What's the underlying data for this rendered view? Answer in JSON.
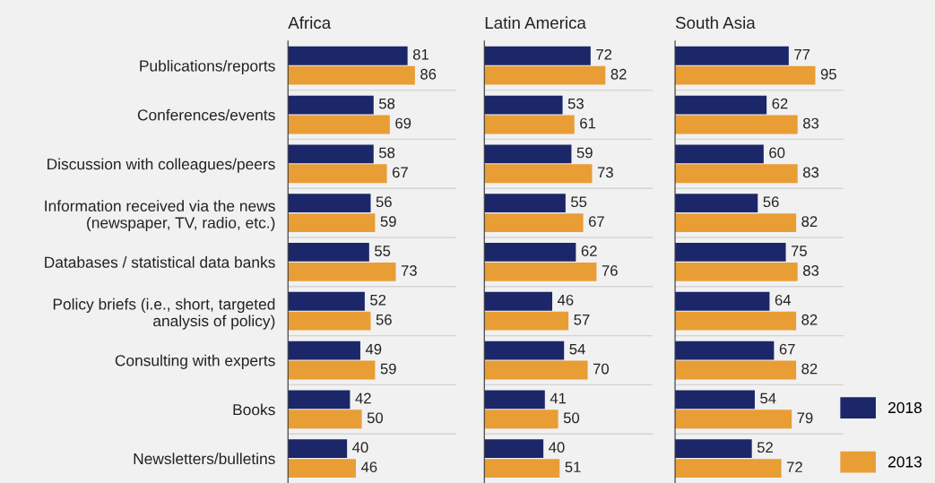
{
  "chart_data": [
    {
      "type": "bar",
      "orientation": "horizontal",
      "title": "Africa",
      "categories": [
        "Publications/reports",
        "Conferences/events",
        "Discussion with colleagues/peers",
        "Information received via the news\n(newspaper, TV, radio, etc.)",
        "Databases / statistical data banks",
        "Policy briefs (i.e., short, targeted\nanalysis of policy)",
        "Consulting with experts",
        "Books",
        "Newsletters/bulletins"
      ],
      "series": [
        {
          "name": "2018",
          "color": "#1b2768",
          "values": [
            81,
            58,
            58,
            56,
            55,
            52,
            49,
            42,
            40
          ]
        },
        {
          "name": "2013",
          "color": "#e99d35",
          "values": [
            86,
            69,
            67,
            59,
            73,
            56,
            59,
            50,
            46
          ]
        }
      ],
      "data_labels": true,
      "grid": "y",
      "tick_labels": "y",
      "legend": "bottom right"
    },
    {
      "type": "bar",
      "orientation": "horizontal",
      "title": "Latin America",
      "categories": [
        null,
        null,
        null,
        null,
        null,
        null,
        null,
        null,
        null
      ],
      "series": [
        {
          "name": "2018",
          "color": "#1b2768",
          "values": [
            72,
            53,
            59,
            55,
            62,
            46,
            54,
            41,
            40
          ]
        },
        {
          "name": "2013",
          "color": "#e99d35",
          "values": [
            82,
            61,
            73,
            67,
            76,
            57,
            70,
            50,
            51
          ]
        }
      ],
      "data_labels": true,
      "grid": "y",
      "tick_labels": false,
      "legend": false
    },
    {
      "type": "bar",
      "orientation": "horizontal",
      "title": "South Asia",
      "categories": [
        null,
        null,
        null,
        null,
        null,
        null,
        null,
        null,
        null
      ],
      "series": [
        {
          "name": "2018",
          "color": "#1b2768",
          "values": [
            77,
            62,
            60,
            56,
            75,
            64,
            67,
            54,
            52
          ]
        },
        {
          "name": "2013",
          "color": "#e99d35",
          "values": [
            95,
            83,
            83,
            82,
            83,
            82,
            82,
            79,
            72
          ]
        }
      ],
      "data_labels": true,
      "grid": "y",
      "tick_labels": false,
      "legend": false
    }
  ]
}
